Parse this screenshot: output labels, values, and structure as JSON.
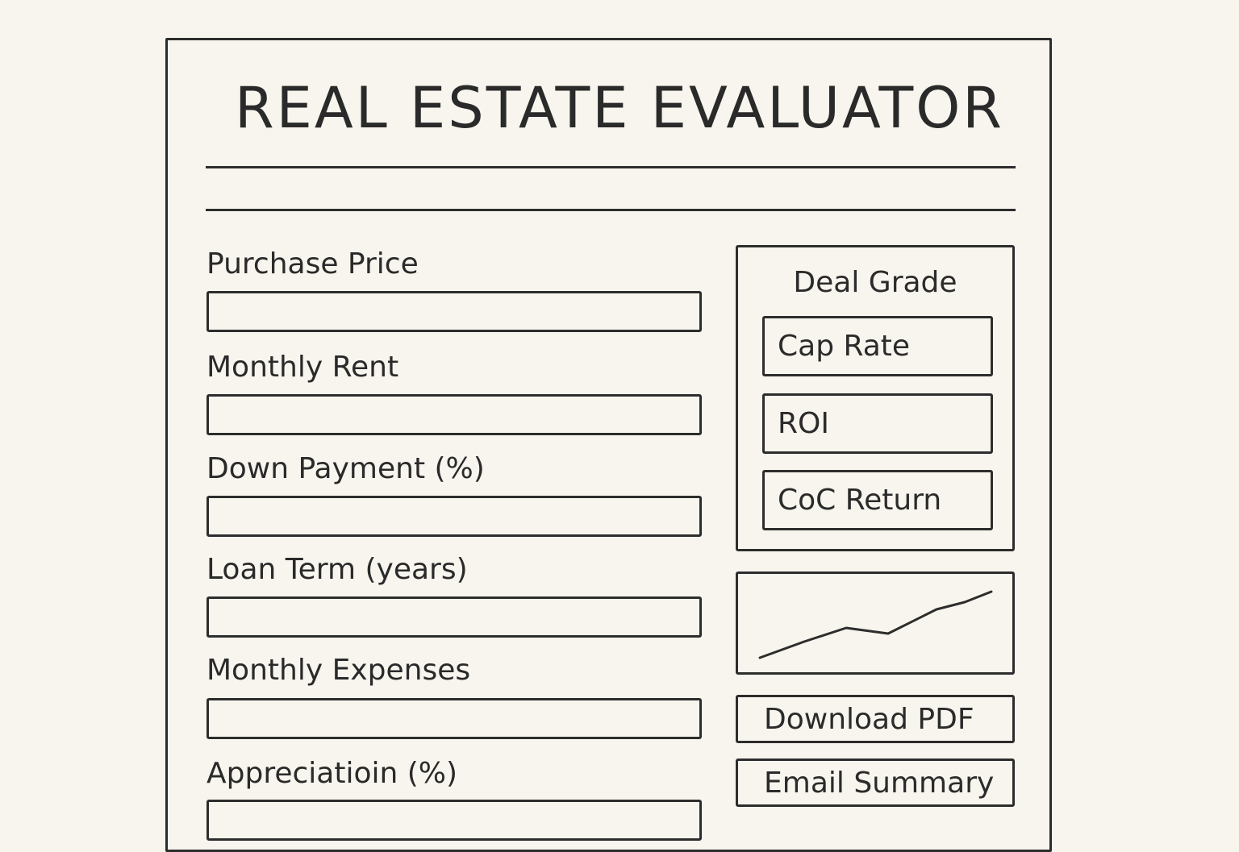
{
  "app": {
    "title": "REAL ESTATE EVALUATOR"
  },
  "form": {
    "fields": [
      {
        "label": "Purchase Price",
        "value": ""
      },
      {
        "label": "Monthly Rent",
        "value": ""
      },
      {
        "label": "Down Payment (%)",
        "value": ""
      },
      {
        "label": "Loan Term (years)",
        "value": ""
      },
      {
        "label": "Monthly Expenses",
        "value": ""
      },
      {
        "label": "Appreciatioin (%)",
        "value": ""
      }
    ]
  },
  "results": {
    "title": "Deal Grade",
    "metrics": [
      {
        "label": "Cap Rate"
      },
      {
        "label": "ROI"
      },
      {
        "label": "CoC Return"
      }
    ]
  },
  "chart": {
    "icon": "trend-line-sparkline"
  },
  "actions": {
    "download_label": "Download PDF",
    "email_label": "Email Summary"
  }
}
